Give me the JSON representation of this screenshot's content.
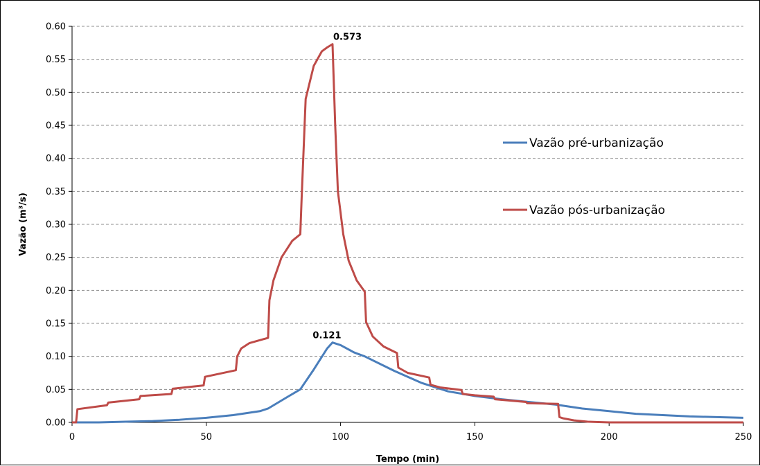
{
  "chart_data": {
    "type": "line",
    "title": "",
    "xlabel": "Tempo (min)",
    "ylabel": "Vazão (m³/s)",
    "xlim": [
      0,
      250
    ],
    "ylim": [
      0,
      0.6
    ],
    "xticks": [
      0,
      50,
      100,
      150,
      200,
      250
    ],
    "yticks": [
      0.0,
      0.05,
      0.1,
      0.15,
      0.2,
      0.25,
      0.3,
      0.35,
      0.4,
      0.45,
      0.5,
      0.55,
      0.6
    ],
    "grid": "horizontal-dashed",
    "legend_position": "right",
    "series": [
      {
        "name": "Vazão pré-urbanização",
        "color": "#4a7ebb",
        "x": [
          0,
          10,
          20,
          30,
          40,
          50,
          60,
          70,
          73,
          80,
          85,
          90,
          95,
          97,
          100,
          105,
          109,
          115,
          120,
          130,
          140,
          150,
          160,
          170,
          180,
          190,
          200,
          210,
          220,
          230,
          240,
          250
        ],
        "y": [
          0.0,
          0.0,
          0.001,
          0.002,
          0.004,
          0.007,
          0.011,
          0.017,
          0.021,
          0.038,
          0.05,
          0.08,
          0.112,
          0.121,
          0.117,
          0.106,
          0.1,
          0.088,
          0.078,
          0.06,
          0.047,
          0.04,
          0.035,
          0.031,
          0.027,
          0.021,
          0.017,
          0.013,
          0.011,
          0.009,
          0.008,
          0.007
        ]
      },
      {
        "name": "Vazão pós-urbanização",
        "color": "#be4b48",
        "x": [
          0,
          1.5,
          2,
          13,
          13.5,
          25,
          25.5,
          37,
          37.5,
          49,
          49.5,
          61,
          61.5,
          63,
          66,
          73,
          73.5,
          75,
          78,
          82,
          85,
          85.5,
          87,
          90,
          93,
          95,
          97,
          98,
          99,
          101,
          103,
          106,
          109,
          109.5,
          112,
          116,
          121,
          121.5,
          125,
          133,
          133.5,
          137,
          145,
          145.5,
          150,
          157,
          157.5,
          169,
          169.5,
          181,
          181.5,
          183,
          187,
          192,
          200,
          250
        ],
        "y": [
          0.0,
          0.0,
          0.02,
          0.026,
          0.03,
          0.035,
          0.04,
          0.043,
          0.051,
          0.056,
          0.069,
          0.079,
          0.1,
          0.112,
          0.12,
          0.128,
          0.185,
          0.215,
          0.25,
          0.275,
          0.285,
          0.34,
          0.49,
          0.54,
          0.562,
          0.568,
          0.573,
          0.45,
          0.35,
          0.285,
          0.245,
          0.215,
          0.198,
          0.152,
          0.13,
          0.115,
          0.105,
          0.083,
          0.075,
          0.068,
          0.057,
          0.053,
          0.049,
          0.043,
          0.041,
          0.039,
          0.035,
          0.031,
          0.029,
          0.028,
          0.008,
          0.006,
          0.003,
          0.001,
          0.0,
          0.0
        ]
      }
    ],
    "annotations": [
      {
        "x": 97,
        "y": 0.573,
        "text": "0.573"
      },
      {
        "x": 97,
        "y": 0.121,
        "text": "0.121"
      }
    ]
  }
}
